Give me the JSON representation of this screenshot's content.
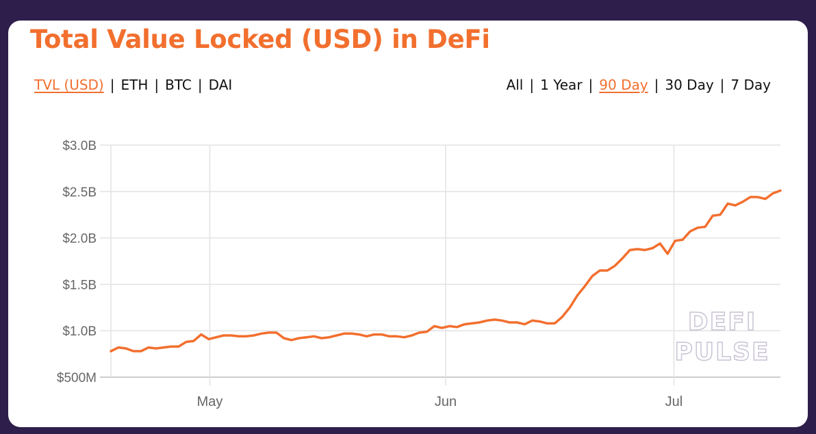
{
  "title": "Total Value Locked (USD) in DeFi",
  "metric_toggles": [
    {
      "label": "TVL (USD)",
      "active": true
    },
    {
      "label": "ETH",
      "active": false
    },
    {
      "label": "BTC",
      "active": false
    },
    {
      "label": "DAI",
      "active": false
    }
  ],
  "range_toggles": [
    {
      "label": "All",
      "active": false
    },
    {
      "label": "1 Year",
      "active": false
    },
    {
      "label": "90 Day",
      "active": true
    },
    {
      "label": "30 Day",
      "active": false
    },
    {
      "label": "7 Day",
      "active": false
    }
  ],
  "separator": "|",
  "watermark": {
    "line1": "DEFI",
    "line2": "PULSE"
  },
  "colors": {
    "accent": "#f26f2e",
    "background": "#2d1e4b",
    "card": "#ffffff",
    "grid": "#e2e2e2",
    "axis_text": "#666666"
  },
  "chart_data": {
    "type": "line",
    "title": "Total Value Locked (USD) in DeFi",
    "xlabel": "",
    "ylabel": "TVL (USD)",
    "ylim": [
      0.5,
      3.0
    ],
    "y_unit": "billion USD",
    "y_ticks": [
      {
        "value": 3.0,
        "label": "$3.0B"
      },
      {
        "value": 2.5,
        "label": "$2.5B"
      },
      {
        "value": 2.0,
        "label": "$2.0B"
      },
      {
        "value": 1.5,
        "label": "$1.5B"
      },
      {
        "value": 1.0,
        "label": "$1.0B"
      },
      {
        "value": 0.5,
        "label": "$500M"
      }
    ],
    "x_ticks": [
      {
        "label": "May",
        "day_index": 13
      },
      {
        "label": "Jun",
        "day_index": 44
      },
      {
        "label": "Jul",
        "day_index": 74
      }
    ],
    "x_range_days": [
      0,
      88
    ],
    "grid": true,
    "legend": "none",
    "series": [
      {
        "name": "TVL (USD)",
        "values": [
          0.78,
          0.82,
          0.81,
          0.78,
          0.78,
          0.82,
          0.81,
          0.82,
          0.83,
          0.83,
          0.88,
          0.89,
          0.96,
          0.91,
          0.93,
          0.95,
          0.95,
          0.94,
          0.94,
          0.95,
          0.97,
          0.98,
          0.98,
          0.92,
          0.9,
          0.92,
          0.93,
          0.94,
          0.92,
          0.93,
          0.95,
          0.97,
          0.97,
          0.96,
          0.94,
          0.96,
          0.96,
          0.94,
          0.94,
          0.93,
          0.95,
          0.98,
          0.99,
          1.05,
          1.03,
          1.05,
          1.04,
          1.07,
          1.08,
          1.09,
          1.11,
          1.12,
          1.11,
          1.09,
          1.09,
          1.07,
          1.11,
          1.1,
          1.08,
          1.08,
          1.15,
          1.25,
          1.38,
          1.48,
          1.59,
          1.65,
          1.65,
          1.7,
          1.78,
          1.87,
          1.88,
          1.87,
          1.89,
          1.94,
          1.83,
          1.97,
          1.98,
          2.07,
          2.11,
          2.12,
          2.24,
          2.25,
          2.37,
          2.35,
          2.39,
          2.44,
          2.44,
          2.42,
          2.48,
          2.51
        ]
      }
    ]
  }
}
